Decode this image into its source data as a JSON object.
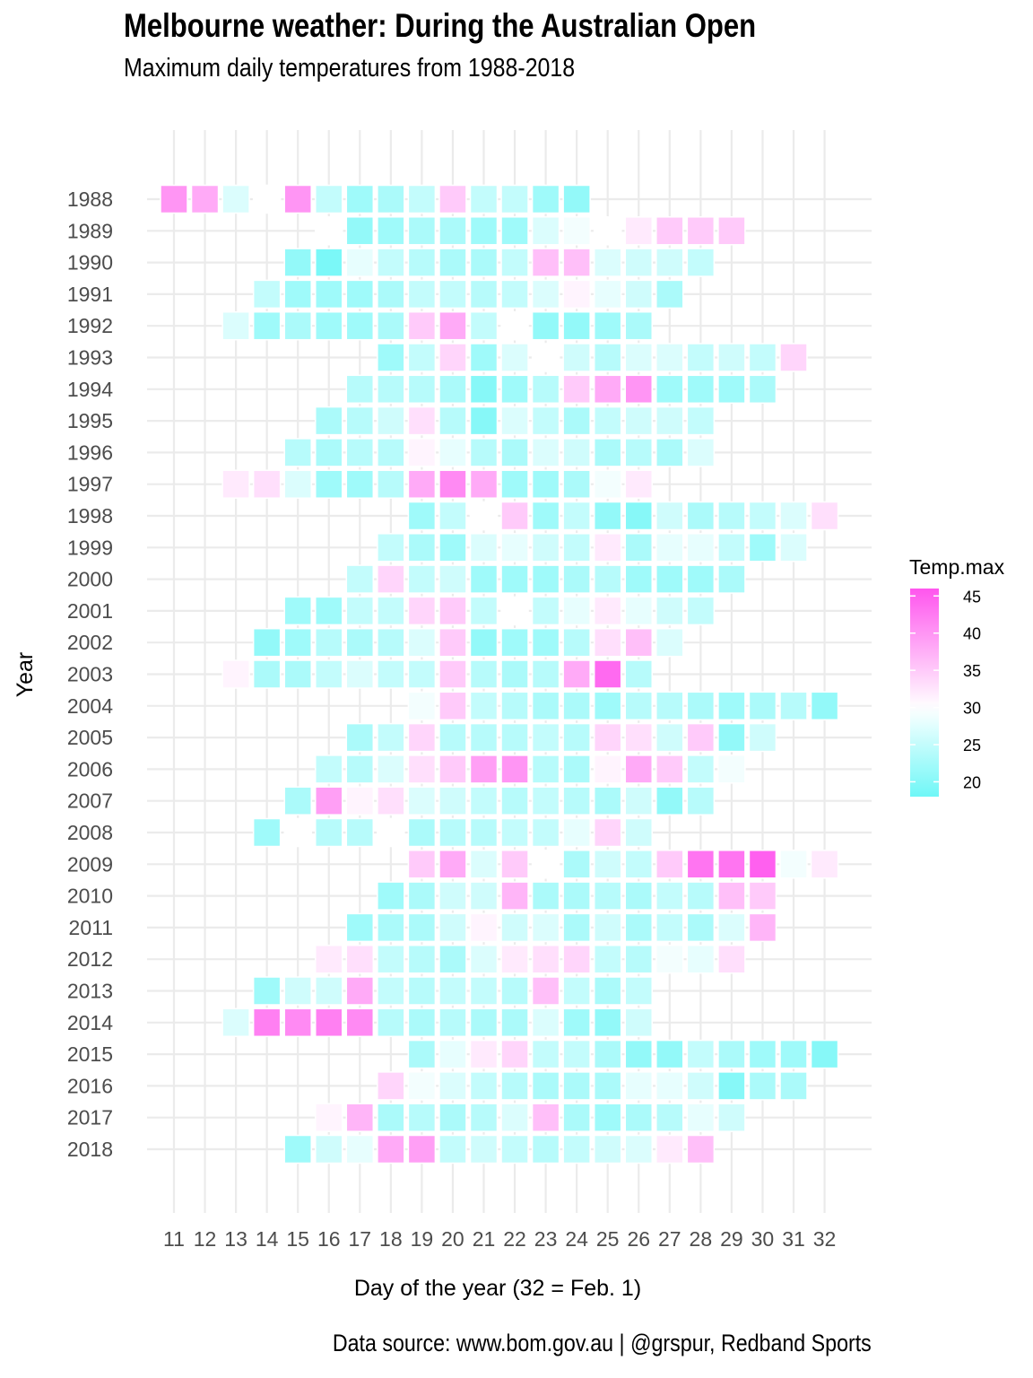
{
  "header": {
    "title": "Melbourne weather: During the Australian Open",
    "subtitle": "Maximum daily temperatures from 1988-2018"
  },
  "footer": {
    "caption": "Data source: www.bom.gov.au  |  @grspur, Redband Sports"
  },
  "chart_data": {
    "type": "heatmap",
    "title": "Melbourne weather: During the Australian Open",
    "subtitle": "Maximum daily temperatures from 1988-2018",
    "xlabel": "Day of the year (32 = Feb. 1)",
    "ylabel": "Year",
    "x_ticks": [
      11,
      12,
      13,
      14,
      15,
      16,
      17,
      18,
      19,
      20,
      21,
      22,
      23,
      24,
      25,
      26,
      27,
      28,
      29,
      30,
      31,
      32
    ],
    "years": [
      1988,
      1989,
      1990,
      1991,
      1992,
      1993,
      1994,
      1995,
      1996,
      1997,
      1998,
      1999,
      2000,
      2001,
      2002,
      2003,
      2004,
      2005,
      2006,
      2007,
      2008,
      2009,
      2010,
      2011,
      2012,
      2013,
      2014,
      2015,
      2016,
      2017,
      2018
    ],
    "grid": true,
    "legend": {
      "title": "Temp.max",
      "ticks": [
        45,
        40,
        35,
        30,
        25,
        20
      ],
      "range": [
        18,
        46
      ],
      "placement": "right",
      "color_low": "#6ff7f7",
      "color_mid": "#ffffff",
      "color_high": "#ff55ee",
      "midpoint": 30
    },
    "rows": [
      {
        "year": 1988,
        "start": 11,
        "temps": [
          40,
          38,
          27,
          30,
          40,
          25,
          22,
          23,
          25,
          35,
          25,
          25,
          22,
          21
        ]
      },
      {
        "year": 1989,
        "start": 16,
        "temps": [
          30,
          21,
          22,
          23,
          23,
          22,
          22,
          27,
          29,
          30,
          32,
          35,
          35,
          35
        ]
      },
      {
        "year": 1990,
        "start": 15,
        "temps": [
          21,
          19,
          28,
          25,
          24,
          23,
          23,
          25,
          36,
          36,
          27,
          26,
          26,
          25
        ]
      },
      {
        "year": 1991,
        "start": 14,
        "temps": [
          25,
          22,
          22,
          22,
          23,
          25,
          25,
          24,
          25,
          27,
          31,
          28,
          26,
          23
        ]
      },
      {
        "year": 1992,
        "start": 13,
        "temps": [
          27,
          22,
          23,
          22,
          22,
          23,
          35,
          38,
          25,
          30,
          21,
          21,
          22,
          23
        ]
      },
      {
        "year": 1993,
        "start": 18,
        "temps": [
          22,
          25,
          34,
          22,
          27,
          30,
          26,
          24,
          27,
          27,
          25,
          26,
          25,
          34
        ]
      },
      {
        "year": 1994,
        "start": 17,
        "temps": [
          24,
          24,
          24,
          23,
          20,
          22,
          24,
          35,
          38,
          40,
          22,
          22,
          22,
          23
        ]
      },
      {
        "year": 1995,
        "start": 16,
        "temps": [
          23,
          24,
          26,
          33,
          24,
          20,
          27,
          25,
          23,
          25,
          26,
          26,
          25
        ]
      },
      {
        "year": 1996,
        "start": 15,
        "temps": [
          24,
          23,
          24,
          24,
          31,
          28,
          24,
          23,
          27,
          26,
          23,
          24,
          23,
          27
        ]
      },
      {
        "year": 1997,
        "start": 13,
        "temps": [
          32,
          33,
          27,
          22,
          22,
          24,
          38,
          41,
          38,
          22,
          22,
          23,
          29,
          32
        ]
      },
      {
        "year": 1998,
        "start": 19,
        "temps": [
          22,
          25,
          30,
          35,
          22,
          25,
          21,
          20,
          26,
          23,
          24,
          25,
          27,
          33
        ]
      },
      {
        "year": 1999,
        "start": 18,
        "temps": [
          25,
          23,
          22,
          27,
          28,
          26,
          25,
          32,
          23,
          28,
          28,
          25,
          22,
          27
        ]
      },
      {
        "year": 2000,
        "start": 17,
        "temps": [
          25,
          34,
          25,
          26,
          22,
          22,
          22,
          23,
          24,
          22,
          22,
          22,
          23
        ]
      },
      {
        "year": 2001,
        "start": 15,
        "temps": [
          22,
          22,
          25,
          25,
          34,
          35,
          25,
          30,
          25,
          28,
          32,
          28,
          26,
          25
        ]
      },
      {
        "year": 2002,
        "start": 14,
        "temps": [
          21,
          22,
          24,
          23,
          24,
          27,
          35,
          21,
          22,
          22,
          24,
          33,
          36,
          27
        ]
      },
      {
        "year": 2003,
        "start": 13,
        "temps": [
          31,
          23,
          23,
          25,
          27,
          25,
          25,
          35,
          24,
          23,
          24,
          38,
          44,
          24
        ]
      },
      {
        "year": 2004,
        "start": 19,
        "temps": [
          29,
          35,
          25,
          24,
          23,
          23,
          22,
          24,
          24,
          23,
          22,
          23,
          24,
          21
        ]
      },
      {
        "year": 2005,
        "start": 17,
        "temps": [
          23,
          25,
          34,
          24,
          24,
          24,
          25,
          24,
          34,
          33,
          26,
          35,
          21,
          26
        ]
      },
      {
        "year": 2006,
        "start": 16,
        "temps": [
          25,
          24,
          27,
          33,
          35,
          39,
          40,
          24,
          23,
          31,
          38,
          35,
          25,
          29
        ]
      },
      {
        "year": 2007,
        "start": 15,
        "temps": [
          23,
          39,
          31,
          33,
          27,
          26,
          25,
          24,
          25,
          24,
          23,
          26,
          21,
          24
        ]
      },
      {
        "year": 2008,
        "start": 14,
        "temps": [
          22,
          30,
          24,
          24,
          30,
          23,
          24,
          24,
          25,
          25,
          28,
          34,
          26
        ]
      },
      {
        "year": 2009,
        "start": 19,
        "temps": [
          35,
          38,
          27,
          35,
          30,
          23,
          26,
          25,
          35,
          43,
          43,
          45,
          29,
          32
        ]
      },
      {
        "year": 2010,
        "start": 18,
        "temps": [
          22,
          23,
          26,
          26,
          37,
          23,
          23,
          24,
          23,
          25,
          24,
          36,
          35
        ]
      },
      {
        "year": 2011,
        "start": 17,
        "temps": [
          22,
          23,
          23,
          26,
          31,
          26,
          27,
          23,
          26,
          23,
          25,
          23,
          27,
          37
        ]
      },
      {
        "year": 2012,
        "start": 16,
        "temps": [
          32,
          33,
          25,
          24,
          23,
          27,
          32,
          33,
          34,
          25,
          24,
          29,
          28,
          33
        ]
      },
      {
        "year": 2013,
        "start": 14,
        "temps": [
          22,
          26,
          26,
          38,
          25,
          24,
          25,
          25,
          24,
          36,
          25,
          23,
          25
        ]
      },
      {
        "year": 2014,
        "start": 13,
        "temps": [
          27,
          42,
          41,
          42,
          41,
          24,
          23,
          24,
          23,
          23,
          27,
          22,
          21,
          26
        ]
      },
      {
        "year": 2015,
        "start": 19,
        "temps": [
          23,
          28,
          32,
          34,
          25,
          25,
          23,
          21,
          21,
          25,
          23,
          22,
          22,
          20
        ]
      },
      {
        "year": 2016,
        "start": 18,
        "temps": [
          34,
          29,
          27,
          25,
          24,
          23,
          23,
          23,
          28,
          28,
          26,
          20,
          23,
          23
        ]
      },
      {
        "year": 2017,
        "start": 16,
        "temps": [
          31,
          37,
          23,
          24,
          23,
          24,
          27,
          36,
          23,
          22,
          23,
          24,
          28,
          26
        ]
      },
      {
        "year": 2018,
        "start": 15,
        "temps": [
          22,
          26,
          28,
          38,
          39,
          25,
          26,
          25,
          24,
          25,
          26,
          27,
          32,
          36
        ]
      }
    ]
  }
}
